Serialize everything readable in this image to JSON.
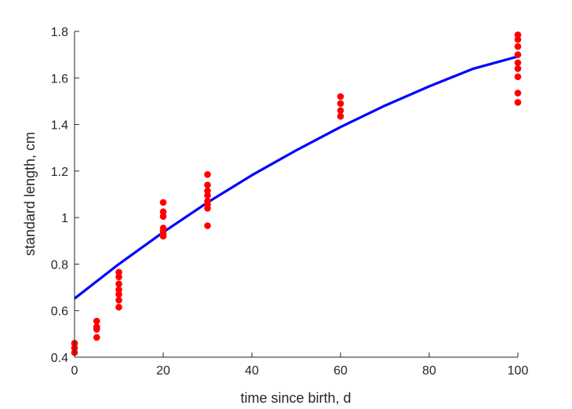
{
  "chart_data": {
    "type": "scatter",
    "xlabel": "time since birth, d",
    "ylabel": "standard length, cm",
    "xlim": [
      0,
      100
    ],
    "ylim": [
      0.4,
      1.8
    ],
    "xticks": [
      0,
      20,
      40,
      60,
      80,
      100
    ],
    "xtick_labels": [
      "0",
      "20",
      "40",
      "60",
      "80",
      "100"
    ],
    "yticks": [
      0.4,
      0.6,
      0.8,
      1.0,
      1.2,
      1.4,
      1.6,
      1.8
    ],
    "ytick_labels": [
      "0.4",
      "0.6",
      "0.8",
      "1",
      "1.2",
      "1.4",
      "1.6",
      "1.8"
    ],
    "grid": false,
    "series": [
      {
        "kind": "scatter",
        "color": "#ff0000",
        "points": [
          [
            0,
            0.46
          ],
          [
            0,
            0.44
          ],
          [
            0,
            0.42
          ],
          [
            5,
            0.555
          ],
          [
            5,
            0.53
          ],
          [
            5,
            0.52
          ],
          [
            5,
            0.485
          ],
          [
            10,
            0.765
          ],
          [
            10,
            0.745
          ],
          [
            10,
            0.715
          ],
          [
            10,
            0.69
          ],
          [
            10,
            0.67
          ],
          [
            10,
            0.645
          ],
          [
            10,
            0.615
          ],
          [
            20,
            1.065
          ],
          [
            20,
            1.025
          ],
          [
            20,
            1.005
          ],
          [
            20,
            0.955
          ],
          [
            20,
            0.94
          ],
          [
            20,
            0.93
          ],
          [
            20,
            0.92
          ],
          [
            30,
            1.185
          ],
          [
            30,
            1.14
          ],
          [
            30,
            1.115
          ],
          [
            30,
            1.095
          ],
          [
            30,
            1.07
          ],
          [
            30,
            1.055
          ],
          [
            30,
            1.04
          ],
          [
            30,
            0.965
          ],
          [
            60,
            1.52
          ],
          [
            60,
            1.49
          ],
          [
            60,
            1.46
          ],
          [
            60,
            1.435
          ],
          [
            100,
            1.785
          ],
          [
            100,
            1.765
          ],
          [
            100,
            1.735
          ],
          [
            100,
            1.7
          ],
          [
            100,
            1.665
          ],
          [
            100,
            1.64
          ],
          [
            100,
            1.605
          ],
          [
            100,
            1.535
          ],
          [
            100,
            1.495
          ]
        ]
      },
      {
        "kind": "line",
        "color": "#0000ff",
        "x": [
          0,
          10,
          20,
          30,
          40,
          50,
          60,
          70,
          80,
          90,
          100
        ],
        "y": [
          0.652,
          0.8,
          0.937,
          1.065,
          1.182,
          1.289,
          1.389,
          1.481,
          1.564,
          1.64,
          1.692
        ]
      }
    ]
  }
}
